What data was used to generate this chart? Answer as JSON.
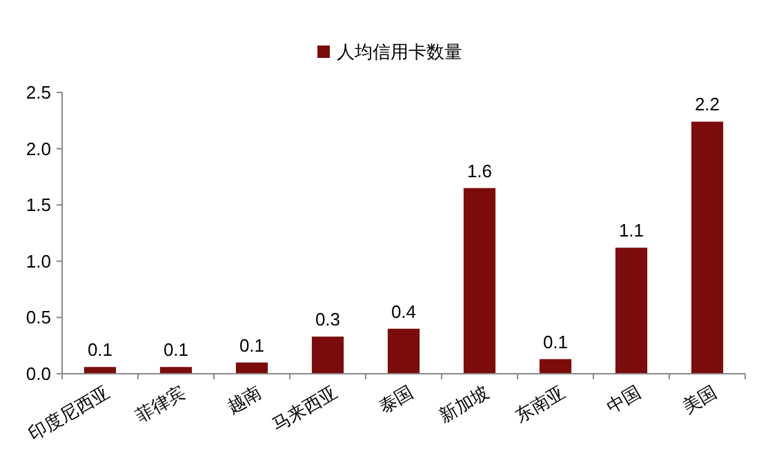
{
  "chart_data": {
    "type": "bar",
    "categories": [
      "印度尼西亚",
      "菲律宾",
      "越南",
      "马来西亚",
      "泰国",
      "新加坡",
      "东南亚",
      "中国",
      "美国"
    ],
    "series": [
      {
        "name": "人均信用卡数量",
        "color": "#7b0c0c",
        "values": [
          0.06,
          0.06,
          0.1,
          0.33,
          0.4,
          1.65,
          0.13,
          1.12,
          2.24
        ],
        "value_labels": [
          "0.1",
          "0.1",
          "0.1",
          "0.3",
          "0.4",
          "1.6",
          "0.1",
          "1.1",
          "2.2"
        ]
      }
    ],
    "ylim": [
      0,
      2.5
    ],
    "yticks": [
      {
        "value": 0,
        "label": "0.0"
      },
      {
        "value": 0.5,
        "label": "0.5"
      },
      {
        "value": 1,
        "label": "1.0"
      },
      {
        "value": 1.5,
        "label": "1.5"
      },
      {
        "value": 2,
        "label": "2.0"
      },
      {
        "value": 2.5,
        "label": "2.5"
      }
    ],
    "grid": false,
    "legend": "top"
  }
}
